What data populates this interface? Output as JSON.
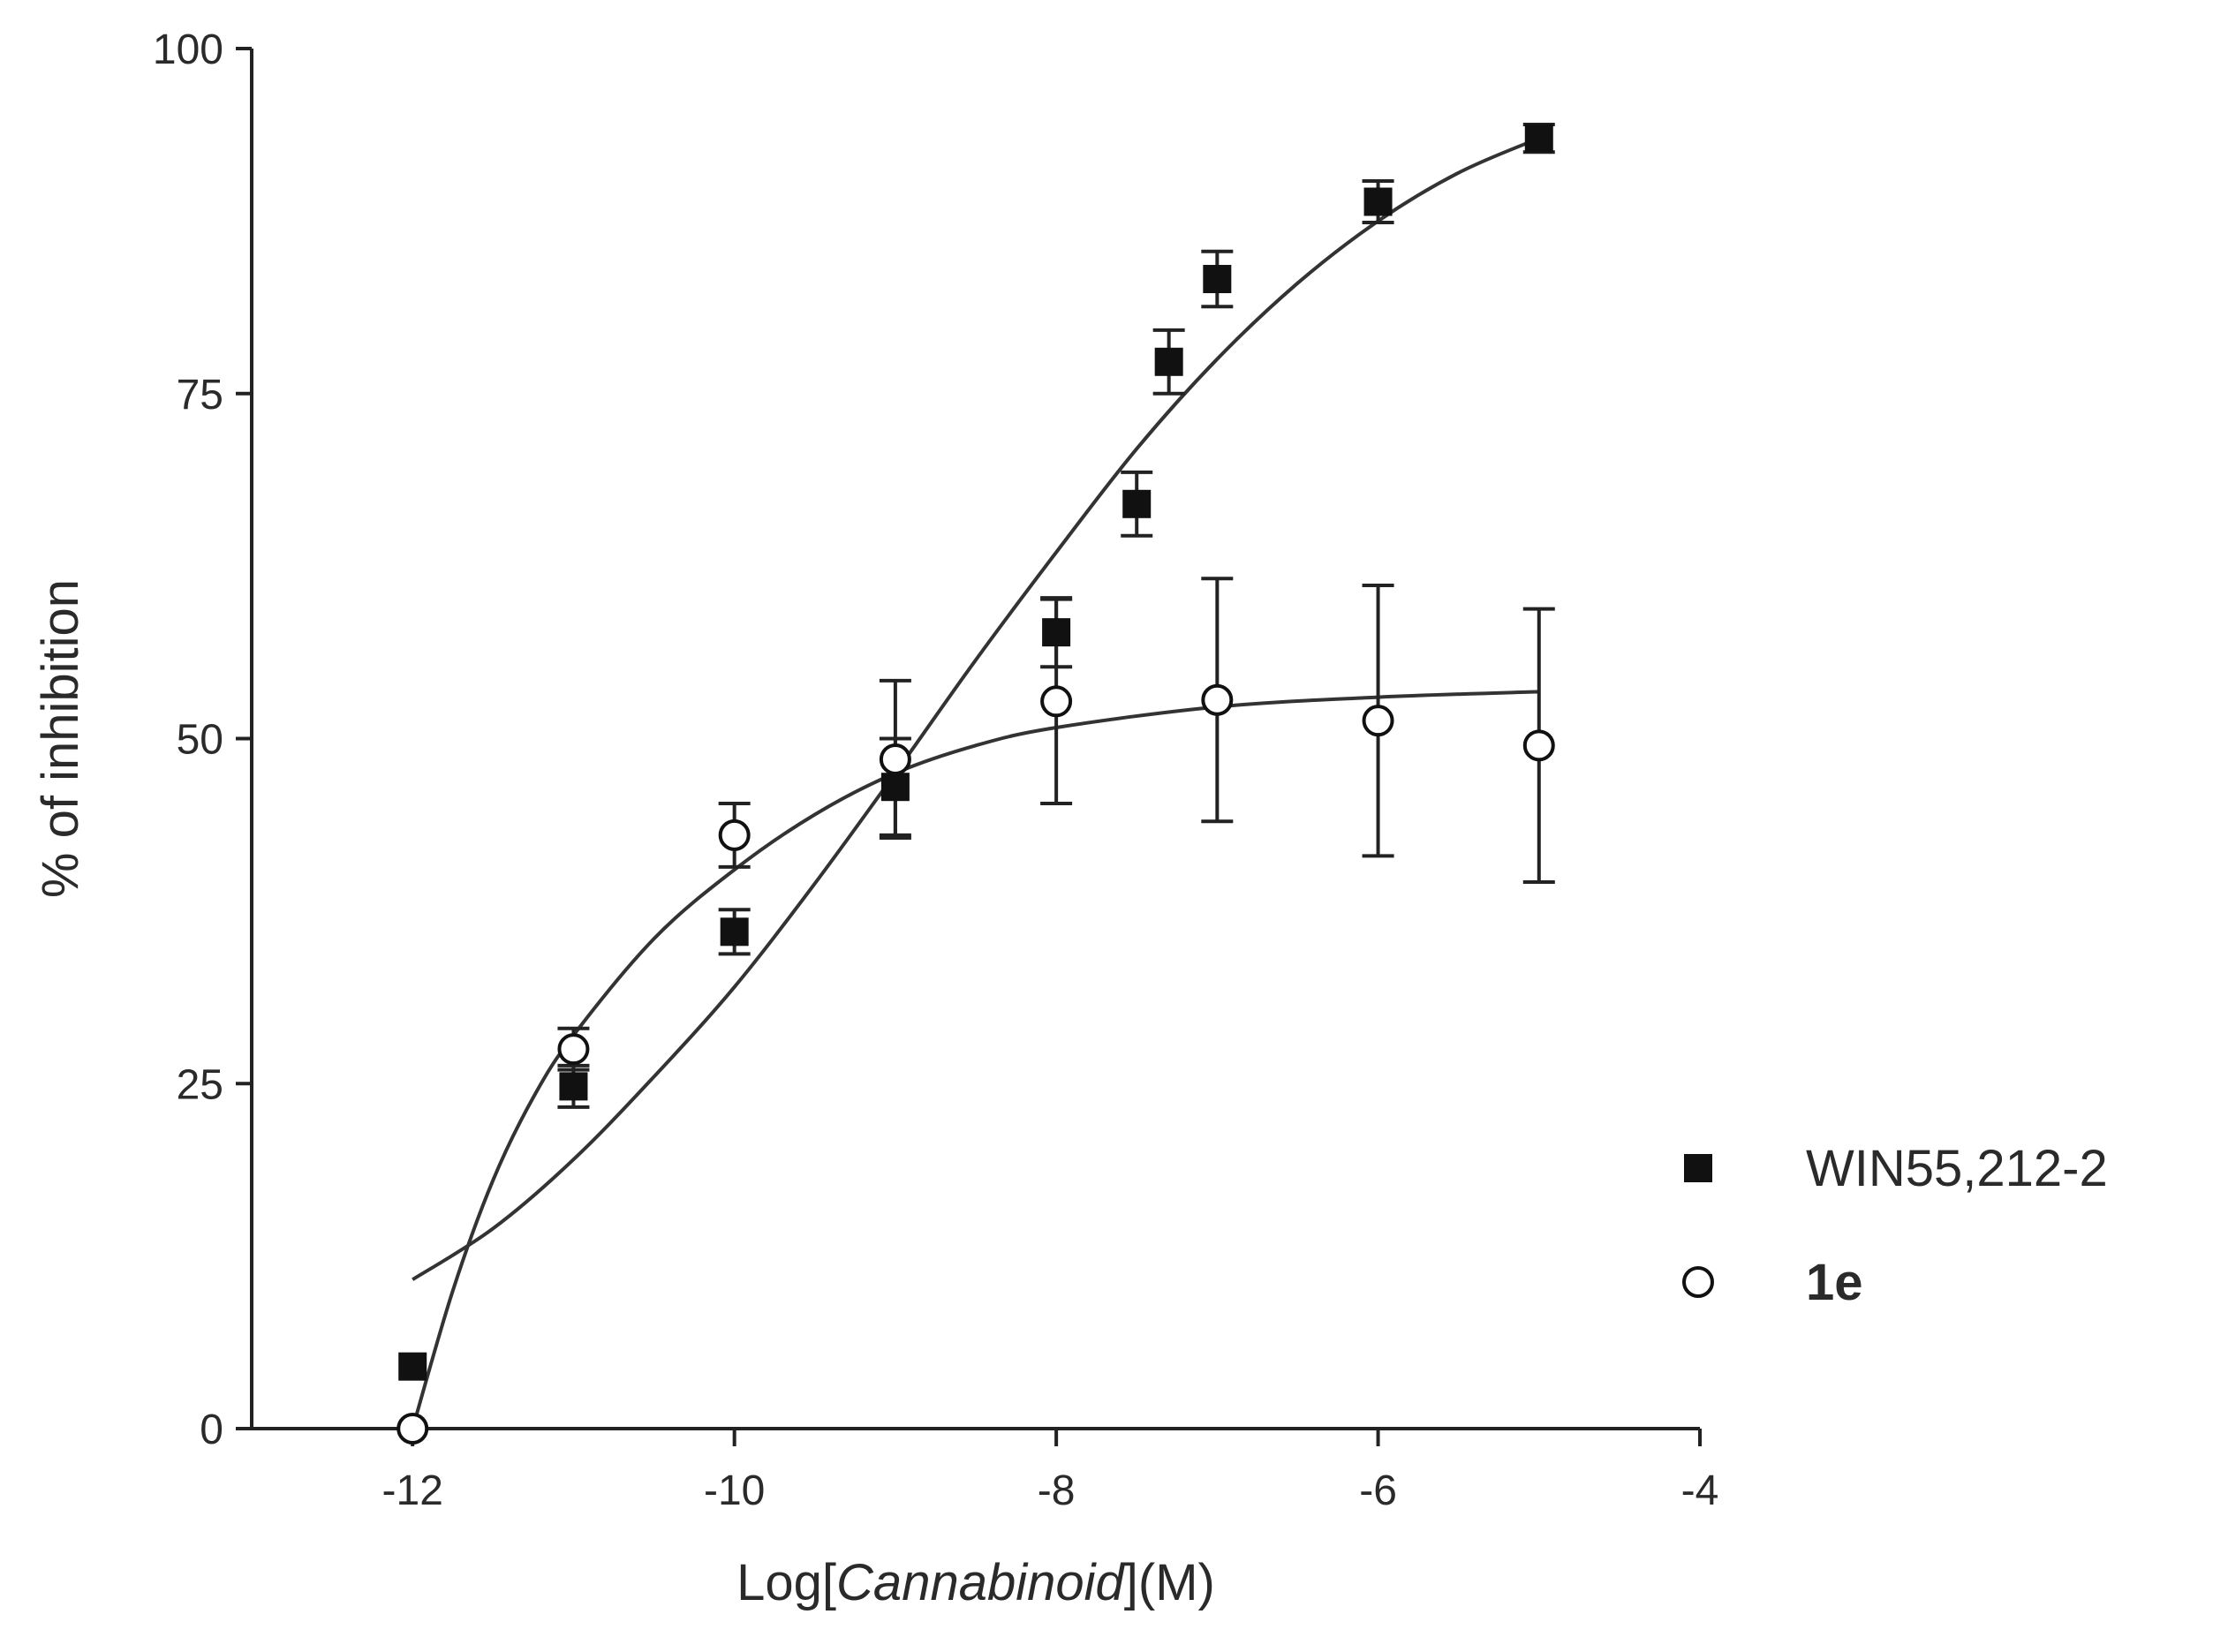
{
  "chart_data": {
    "type": "scatter",
    "xlabel": {
      "prefix": "Log[",
      "italic": "Cannabinoid",
      "suffix": "](M)"
    },
    "ylabel": "% of inhibition",
    "xlim": [
      -13,
      -4
    ],
    "ylim": [
      0,
      100
    ],
    "x_ticks": [
      -12,
      -10,
      -8,
      -6,
      -4
    ],
    "y_ticks": [
      0,
      25,
      50,
      75,
      100
    ],
    "legend_position": "right",
    "grid": false,
    "series": [
      {
        "name": "WIN55,212-2",
        "marker": "filled-square",
        "color": "#111111",
        "points": [
          {
            "x": -12,
            "y": 4.5,
            "err": 0
          },
          {
            "x": -11,
            "y": 24.8,
            "err": 1.5
          },
          {
            "x": -10,
            "y": 36,
            "err": 1.6
          },
          {
            "x": -9,
            "y": 46.5,
            "err": 3.5
          },
          {
            "x": -8,
            "y": 57.7,
            "err": 2.5
          },
          {
            "x": -7.5,
            "y": 67,
            "err": 2.3
          },
          {
            "x": -7.3,
            "y": 77.3,
            "err": 2.3
          },
          {
            "x": -7,
            "y": 83.3,
            "err": 2
          },
          {
            "x": -6,
            "y": 88.9,
            "err": 1.5
          },
          {
            "x": -5,
            "y": 93.5,
            "err": 1
          }
        ],
        "curve": [
          {
            "x": -12,
            "y": 10.8
          },
          {
            "x": -11.5,
            "y": 14.5
          },
          {
            "x": -11,
            "y": 19.5
          },
          {
            "x": -10.5,
            "y": 25.5
          },
          {
            "x": -10,
            "y": 32
          },
          {
            "x": -9.5,
            "y": 39.5
          },
          {
            "x": -9,
            "y": 47.5
          },
          {
            "x": -8.5,
            "y": 55.7
          },
          {
            "x": -8,
            "y": 63.5
          },
          {
            "x": -7.5,
            "y": 71
          },
          {
            "x": -7,
            "y": 77.5
          },
          {
            "x": -6.5,
            "y": 83
          },
          {
            "x": -6,
            "y": 87.5
          },
          {
            "x": -5.5,
            "y": 91
          },
          {
            "x": -5,
            "y": 93.5
          }
        ]
      },
      {
        "name": "1e",
        "marker": "open-circle",
        "color": "#111111",
        "points": [
          {
            "x": -12,
            "y": 0,
            "err": 0
          },
          {
            "x": -11,
            "y": 27.5,
            "err": 1.5
          },
          {
            "x": -10,
            "y": 43,
            "err": 2.3
          },
          {
            "x": -9,
            "y": 48.5,
            "err": 5.7
          },
          {
            "x": -8,
            "y": 52.7,
            "err": 7.4
          },
          {
            "x": -7,
            "y": 52.8,
            "err": 8.8
          },
          {
            "x": -6,
            "y": 51.3,
            "err": 9.8
          },
          {
            "x": -5,
            "y": 49.5,
            "err": 9.9
          }
        ],
        "curve": [
          {
            "x": -12,
            "y": 0
          },
          {
            "x": -11.75,
            "y": 10
          },
          {
            "x": -11.5,
            "y": 18
          },
          {
            "x": -11.25,
            "y": 24
          },
          {
            "x": -11,
            "y": 28.5
          },
          {
            "x": -10.5,
            "y": 35.5
          },
          {
            "x": -10,
            "y": 40.5
          },
          {
            "x": -9.5,
            "y": 44.5
          },
          {
            "x": -9,
            "y": 47.5
          },
          {
            "x": -8.5,
            "y": 49.5
          },
          {
            "x": -8,
            "y": 50.8
          },
          {
            "x": -7,
            "y": 52.3
          },
          {
            "x": -6,
            "y": 53
          },
          {
            "x": -5,
            "y": 53.4
          }
        ]
      }
    ]
  }
}
